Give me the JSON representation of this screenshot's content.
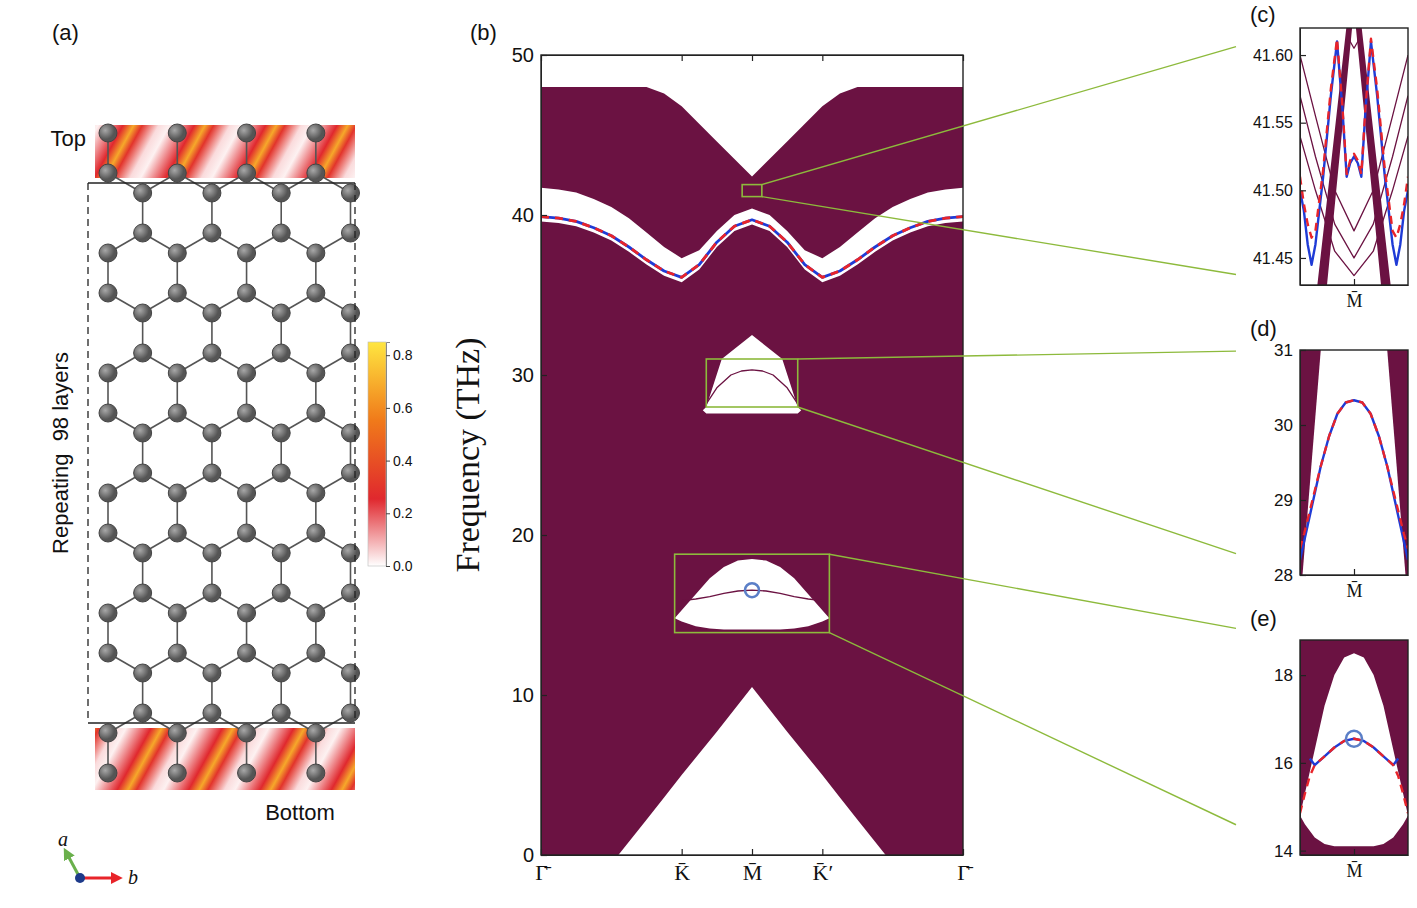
{
  "chart_data": [
    {
      "type": "structure",
      "panel_label": "(a)",
      "top_label": "Top",
      "bottom_label": "Bottom",
      "side_label": "Repeating  98 layers",
      "axis_labels": [
        "a",
        "b"
      ],
      "colorbar": {
        "range": [
          0,
          0.85
        ],
        "ticks": [
          {
            "value": 0,
            "label": "0.0"
          },
          0.2,
          0.4,
          0.6,
          0.8
        ]
      }
    },
    {
      "type": "line",
      "panel_label": "(b)",
      "y_label": "Frequency (THz)",
      "color": "#6b1242",
      "xlim": [
        0,
        6
      ],
      "ylim": [
        0,
        50
      ],
      "xticks": [
        {
          "value": 0,
          "label": "Γ̄"
        },
        {
          "value": 2,
          "label": "K̄"
        },
        {
          "value": 3,
          "label": "M̄"
        },
        {
          "value": 4,
          "label": "K̄′"
        },
        {
          "value": 6,
          "label": "Γ̄"
        }
      ],
      "yticks": [
        0,
        10,
        20,
        30,
        40,
        50
      ],
      "series": [
        {
          "type": "area",
          "color": "#6b1242",
          "x": [
            0,
            1.1,
            1.5,
            1.75,
            2,
            2.5,
            3,
            3.5,
            4,
            4.25,
            4.5,
            4.9,
            6
          ],
          "values": [
            48,
            48,
            48,
            47.6,
            46.8,
            44.6,
            42.4,
            44.6,
            46.8,
            47.6,
            48,
            48,
            48
          ],
          "base": [
            0,
            0,
            2.2,
            3.6,
            5,
            7.7,
            10.5,
            7.7,
            5,
            3.6,
            2.2,
            0,
            0
          ]
        },
        {
          "type": "area",
          "color": "#ffffff",
          "x": [
            0,
            0.25,
            0.5,
            0.75,
            1,
            1.25,
            1.5,
            1.75,
            2,
            2.25,
            2.5,
            2.75,
            3,
            3.25,
            3.5,
            3.75,
            4,
            4.25,
            4.5,
            4.75,
            5,
            5.25,
            5.5,
            5.75,
            6
          ],
          "values": [
            41.7,
            41.6,
            41.4,
            41.0,
            40.5,
            39.8,
            38.9,
            38.0,
            37.3,
            37.8,
            39.0,
            40.0,
            40.4,
            40.0,
            39.0,
            37.8,
            37.3,
            38.0,
            38.9,
            39.8,
            40.5,
            41.0,
            41.4,
            41.6,
            41.7
          ],
          "base": [
            39.6,
            39.5,
            39.3,
            38.9,
            38.4,
            37.7,
            36.9,
            36.2,
            35.8,
            36.6,
            38.0,
            39.0,
            39.4,
            39.0,
            38.0,
            36.6,
            35.8,
            36.2,
            36.9,
            37.7,
            38.4,
            38.9,
            39.3,
            39.5,
            39.6
          ]
        },
        {
          "type": "area",
          "color": "#ffffff",
          "x": [
            2.3,
            2.35,
            2.57,
            3,
            3.43,
            3.65,
            3.7
          ],
          "values": [
            27.8,
            28,
            31,
            32.5,
            31,
            28,
            27.8
          ],
          "base": [
            27.8,
            27.6,
            27.6,
            27.6,
            27.6,
            27.6,
            27.8
          ]
        },
        {
          "type": "area",
          "color": "#ffffff",
          "x": [
            1.9,
            2.0,
            2.2,
            2.4,
            2.6,
            2.8,
            3.0,
            3.2,
            3.4,
            3.6,
            3.8,
            4.0,
            4.1
          ],
          "values": [
            14.8,
            15.3,
            16.3,
            17.3,
            18.0,
            18.4,
            18.5,
            18.4,
            18.0,
            17.3,
            16.3,
            15.3,
            14.8
          ],
          "base": [
            14.8,
            14.6,
            14.3,
            14.15,
            14.1,
            14.1,
            14.1,
            14.1,
            14.1,
            14.15,
            14.3,
            14.6,
            14.8
          ]
        },
        {
          "type": "line",
          "color": "#6b1242",
          "line_style": "solid",
          "x": [
            2.35,
            2.5,
            2.7,
            2.85,
            3,
            3.15,
            3.3,
            3.5,
            3.65
          ],
          "values": [
            28.2,
            29.2,
            30.0,
            30.25,
            30.32,
            30.25,
            30.0,
            29.2,
            28.2
          ]
        },
        {
          "type": "line",
          "color": "#6b1242",
          "line_style": "solid",
          "x": [
            2.0,
            2.2,
            2.4,
            2.6,
            2.8,
            3.0,
            3.2,
            3.4,
            3.6,
            3.8,
            4.0
          ],
          "values": [
            15.9,
            16.0,
            16.15,
            16.35,
            16.5,
            16.55,
            16.5,
            16.35,
            16.15,
            16.0,
            15.9
          ]
        },
        {
          "type": "line",
          "color": "#1f3bd6",
          "line_style": "solid",
          "x": [
            0,
            0.25,
            0.5,
            0.75,
            1,
            1.25,
            1.5,
            1.75,
            2,
            2.25,
            2.5,
            2.75,
            3,
            3.25,
            3.5,
            3.75,
            4,
            4.25,
            4.5,
            4.75,
            5,
            5.25,
            5.5,
            5.75,
            6
          ],
          "values": [
            39.9,
            39.8,
            39.6,
            39.2,
            38.7,
            38.0,
            37.2,
            36.5,
            36.1,
            36.9,
            38.3,
            39.3,
            39.7,
            39.3,
            38.3,
            36.9,
            36.1,
            36.5,
            37.2,
            38.0,
            38.7,
            39.2,
            39.6,
            39.8,
            39.9
          ]
        },
        {
          "type": "line",
          "color": "#e8242a",
          "line_style": "dashed",
          "x": [
            0,
            0.25,
            0.5,
            0.75,
            1,
            1.25,
            1.5,
            1.75,
            2,
            2.25,
            2.5,
            2.75,
            3,
            3.25,
            3.5,
            3.75,
            4,
            4.25,
            4.5,
            4.75,
            5,
            5.25,
            5.5,
            5.75,
            6
          ],
          "values": [
            39.9,
            39.8,
            39.6,
            39.2,
            38.7,
            38.0,
            37.2,
            36.5,
            36.1,
            36.9,
            38.3,
            39.3,
            39.7,
            39.3,
            38.3,
            36.9,
            36.1,
            36.5,
            37.2,
            38.0,
            38.7,
            39.2,
            39.6,
            39.8,
            39.9
          ]
        },
        {
          "type": "scatter",
          "marker": "circle",
          "color": "#5b7fc7",
          "x": [
            3
          ],
          "values": [
            16.55
          ]
        }
      ]
    },
    {
      "type": "line",
      "panel_label": "(c)",
      "color": "#6b1242",
      "xlim": [
        2.86,
        3.14
      ],
      "ylim": [
        41.43,
        41.62
      ],
      "xticks": [
        {
          "value": 3,
          "label": "M̄"
        }
      ],
      "yticks": [
        41.45,
        {
          "value": 41.5,
          "label": "41.50"
        },
        41.55,
        {
          "value": 41.6,
          "label": "41.60"
        }
      ],
      "series": [
        {
          "type": "area",
          "color": "#6b1242",
          "x": [
            2.905,
            2.93,
            2.98,
            2.995
          ],
          "values": [
            41.43,
            41.493,
            41.62,
            41.62
          ],
          "base": [
            41.43,
            41.43,
            41.576,
            41.62
          ]
        },
        {
          "type": "area",
          "color": "#6b1242",
          "x": [
            3.005,
            3.02,
            3.07,
            3.095
          ],
          "values": [
            41.62,
            41.62,
            41.493,
            41.43
          ],
          "base": [
            41.62,
            41.576,
            41.43,
            41.43
          ]
        },
        {
          "type": "line",
          "color": "#6b1242",
          "line_style": "solid",
          "x": [
            2.985,
            2.99,
            3.0,
            3.01,
            3.015
          ],
          "values": [
            41.62,
            41.61,
            41.605,
            41.61,
            41.62
          ]
        },
        {
          "type": "line",
          "color": "#6b1242",
          "line_style": "solid",
          "x": [
            2.86,
            2.9,
            2.95,
            3.0,
            3.05,
            3.1,
            3.14
          ],
          "values": [
            41.6,
            41.555,
            41.5,
            41.47,
            41.5,
            41.555,
            41.6
          ]
        },
        {
          "type": "line",
          "color": "#6b1242",
          "line_style": "solid",
          "x": [
            2.86,
            2.9,
            2.95,
            3.0,
            3.05,
            3.1,
            3.14
          ],
          "values": [
            41.57,
            41.525,
            41.475,
            41.45,
            41.475,
            41.525,
            41.57
          ]
        },
        {
          "type": "line",
          "color": "#6b1242",
          "line_style": "solid",
          "x": [
            2.86,
            2.9,
            2.95,
            3.0,
            3.05,
            3.1,
            3.14
          ],
          "values": [
            41.54,
            41.5,
            41.455,
            41.437,
            41.455,
            41.5,
            41.54
          ]
        },
        {
          "type": "line",
          "color": "#1f3bd6",
          "line_style": "solid",
          "x": [
            2.86,
            2.87,
            2.88,
            2.89,
            2.9,
            2.92,
            2.94,
            2.956,
            2.97,
            2.981,
            2.99,
            3.0,
            3.01,
            3.019,
            3.03,
            3.044,
            3.06,
            3.08,
            3.1,
            3.11,
            3.12,
            3.13,
            3.14
          ],
          "values": [
            41.5,
            41.485,
            41.46,
            41.445,
            41.46,
            41.51,
            41.57,
            41.61,
            41.56,
            41.51,
            41.52,
            41.525,
            41.52,
            41.51,
            41.56,
            41.61,
            41.57,
            41.51,
            41.46,
            41.445,
            41.46,
            41.485,
            41.5
          ]
        },
        {
          "type": "line",
          "color": "#e8242a",
          "line_style": "dashed",
          "x": [
            2.86,
            2.87,
            2.88,
            2.89,
            2.9,
            2.92,
            2.94,
            2.956,
            2.97,
            2.981,
            2.99,
            3.0,
            3.01,
            3.019,
            3.03,
            3.044,
            3.06,
            3.08,
            3.1,
            3.11,
            3.12,
            3.13,
            3.14
          ],
          "values": [
            41.51,
            41.49,
            41.475,
            41.465,
            41.47,
            41.515,
            41.575,
            41.612,
            41.562,
            41.512,
            41.522,
            41.527,
            41.522,
            41.512,
            41.562,
            41.612,
            41.575,
            41.515,
            41.47,
            41.465,
            41.475,
            41.49,
            41.51
          ]
        }
      ]
    },
    {
      "type": "line",
      "panel_label": "(d)",
      "color": "#6b1242",
      "xlim": [
        2.35,
        3.65
      ],
      "ylim": [
        28,
        31
      ],
      "xticks": [
        {
          "value": 3,
          "label": "M̄"
        }
      ],
      "yticks": [
        28,
        29,
        30,
        31
      ],
      "series": [
        {
          "type": "area",
          "color": "#6b1242",
          "x": [
            2.35,
            2.38,
            2.6
          ],
          "values": [
            31,
            31,
            31
          ],
          "base": [
            28,
            28,
            31
          ]
        },
        {
          "type": "area",
          "color": "#6b1242",
          "x": [
            3.4,
            3.62,
            3.65
          ],
          "values": [
            31,
            31,
            31
          ],
          "base": [
            31,
            28,
            28
          ]
        },
        {
          "type": "line",
          "color": "#1f3bd6",
          "line_style": "solid",
          "x": [
            2.35,
            2.4,
            2.5,
            2.6,
            2.7,
            2.8,
            2.9,
            3.0,
            3.1,
            3.2,
            3.3,
            3.4,
            3.5,
            3.6,
            3.65
          ],
          "values": [
            28.2,
            28.45,
            28.95,
            29.45,
            29.85,
            30.15,
            30.3,
            30.33,
            30.3,
            30.15,
            29.85,
            29.45,
            28.95,
            28.45,
            28.2
          ]
        },
        {
          "type": "line",
          "color": "#e8242a",
          "line_style": "dashed",
          "x": [
            2.35,
            2.4,
            2.5,
            2.6,
            2.7,
            2.8,
            2.9,
            3.0,
            3.1,
            3.2,
            3.3,
            3.4,
            3.5,
            3.6,
            3.65
          ],
          "values": [
            28.35,
            28.55,
            29.0,
            29.45,
            29.85,
            30.15,
            30.3,
            30.33,
            30.3,
            30.15,
            29.85,
            29.45,
            29.0,
            28.55,
            28.35
          ]
        }
      ]
    },
    {
      "type": "line",
      "panel_label": "(e)",
      "color": "#6b1242",
      "xlim": [
        1.9,
        4.1
      ],
      "ylim": [
        13.9,
        18.8
      ],
      "xticks": [
        {
          "value": 3,
          "label": "M̄"
        }
      ],
      "yticks": [
        14,
        16,
        18
      ],
      "series": [
        {
          "type": "area",
          "color": "#6b1242",
          "x": [
            1.9,
            2.0,
            2.2,
            2.4,
            2.6,
            2.8,
            3.0,
            3.2,
            3.4,
            3.6,
            3.8,
            4.0,
            4.1
          ],
          "values": [
            18.8,
            18.8,
            18.8,
            18.8,
            18.8,
            18.8,
            18.8,
            18.8,
            18.8,
            18.8,
            18.8,
            18.8,
            18.8
          ],
          "base": [
            14.8,
            15.3,
            16.3,
            17.3,
            18.0,
            18.4,
            18.5,
            18.4,
            18.0,
            17.3,
            16.3,
            15.3,
            14.8
          ]
        },
        {
          "type": "area",
          "color": "#6b1242",
          "x": [
            1.9,
            2.0,
            2.2,
            2.4,
            2.6,
            2.8,
            3.0,
            3.2,
            3.4,
            3.6,
            3.8,
            4.0,
            4.1
          ],
          "values": [
            14.8,
            14.6,
            14.3,
            14.15,
            14.1,
            14.1,
            14.1,
            14.1,
            14.1,
            14.15,
            14.3,
            14.6,
            14.8
          ],
          "base": [
            13.9,
            13.9,
            13.9,
            13.9,
            13.9,
            13.9,
            13.9,
            13.9,
            13.9,
            13.9,
            13.9,
            13.9,
            13.9
          ]
        },
        {
          "type": "line",
          "color": "#1f3bd6",
          "line_style": "solid",
          "x": [
            2.1,
            2.2,
            2.4,
            2.6,
            2.8,
            3.0,
            3.2,
            3.4,
            3.6,
            3.8,
            3.9
          ],
          "values": [
            16.1,
            15.95,
            16.15,
            16.35,
            16.5,
            16.55,
            16.5,
            16.35,
            16.15,
            15.95,
            16.1
          ]
        },
        {
          "type": "line",
          "color": "#e8242a",
          "line_style": "dashed",
          "x": [
            1.9,
            2.0,
            2.1,
            2.2,
            2.4,
            2.6,
            2.8,
            3.0,
            3.2,
            3.4,
            3.6,
            3.8,
            3.9,
            4.0,
            4.1
          ],
          "values": [
            14.85,
            15.3,
            15.7,
            15.95,
            16.15,
            16.35,
            16.5,
            16.55,
            16.5,
            16.35,
            16.15,
            15.95,
            15.7,
            15.3,
            14.85
          ]
        },
        {
          "type": "scatter",
          "marker": "circle",
          "color": "#5b7fc7",
          "x": [
            3
          ],
          "values": [
            16.55
          ]
        }
      ]
    }
  ]
}
